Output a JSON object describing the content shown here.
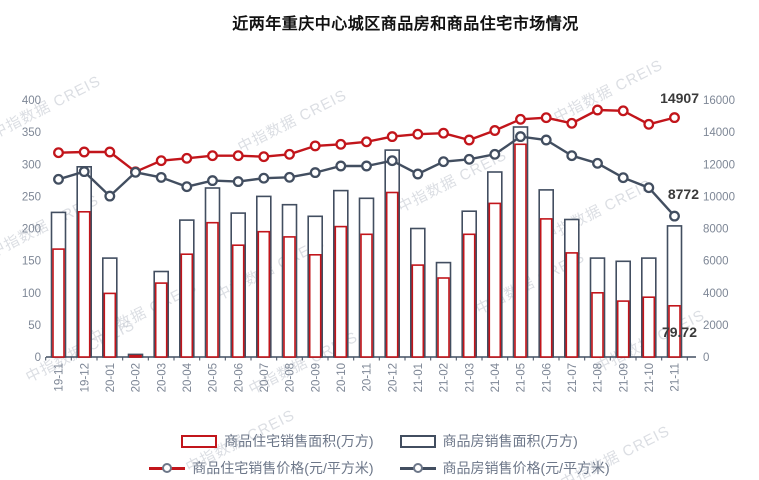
{
  "title": "近两年重庆中心城区商品房和商品住宅市场情况",
  "watermark_text": "中指数据 CREIS",
  "colors": {
    "red": "#c2151b",
    "dark": "#424e60",
    "ax": "#7e8796",
    "ann": "#3a3a3a",
    "wm": "#b9bec8",
    "title": "#111111",
    "legend": "#6d7789"
  },
  "chart_data": {
    "type": "combo-bar-line",
    "title": "近两年重庆中心城区商品房和商品住宅市场情况",
    "grid": false,
    "legend_position": "bottom",
    "categories": [
      "19-11",
      "19-12",
      "20-01",
      "20-02",
      "20-03",
      "20-04",
      "20-05",
      "20-06",
      "20-07",
      "20-08",
      "20-09",
      "20-10",
      "20-11",
      "20-12",
      "21-01",
      "21-02",
      "21-03",
      "21-04",
      "21-05",
      "21-06",
      "21-07",
      "21-08",
      "21-09",
      "21-10",
      "21-11"
    ],
    "left_axis": {
      "min": 0,
      "max": 400,
      "step": 50,
      "unit": "万方"
    },
    "right_axis": {
      "min": 0,
      "max": 16000,
      "step": 2000,
      "unit": "元/平方米"
    },
    "series": [
      {
        "name": "商品住宅销售面积(万方)",
        "type": "bar",
        "yaxis": "left",
        "color_key": "red",
        "values": [
          168,
          226,
          99,
          2,
          115,
          160,
          209,
          174,
          195,
          187,
          159,
          203,
          191,
          256,
          143,
          123,
          191,
          239,
          331,
          215,
          162,
          100,
          87,
          93,
          79.72
        ]
      },
      {
        "name": "商品房销售面积(万方)",
        "type": "bar",
        "yaxis": "left",
        "color_key": "dark",
        "values": [
          225,
          296,
          154,
          4,
          133,
          213,
          263,
          224,
          250,
          237,
          219,
          259,
          247,
          322,
          200,
          147,
          227,
          288,
          358,
          260,
          214,
          154,
          149,
          154,
          204
        ]
      },
      {
        "name": "商品住宅销售价格(元/平方米)",
        "type": "line",
        "yaxis": "right",
        "color_key": "red",
        "values": [
          12720,
          12760,
          12760,
          11530,
          12220,
          12370,
          12530,
          12530,
          12470,
          12620,
          13140,
          13240,
          13400,
          13720,
          13870,
          13930,
          13510,
          14100,
          14800,
          14900,
          14550,
          15380,
          15330,
          14490,
          14907
        ]
      },
      {
        "name": "商品房销售价格(元/平方米)",
        "type": "line",
        "yaxis": "right",
        "color_key": "dark",
        "values": [
          11060,
          11540,
          10020,
          11500,
          11180,
          10600,
          10980,
          10920,
          11130,
          11190,
          11480,
          11890,
          11890,
          12220,
          11390,
          12160,
          12310,
          12620,
          13720,
          13510,
          12530,
          12060,
          11160,
          10540,
          8772
        ]
      }
    ],
    "annotations": [
      {
        "text": "14907",
        "series": "商品住宅销售价格(元/平方米)",
        "category": "21-11"
      },
      {
        "text": "8772",
        "series": "商品房销售价格(元/平方米)",
        "category": "21-11"
      },
      {
        "text": "79.72",
        "series": "商品住宅销售面积(万方)",
        "category": "21-11"
      }
    ]
  }
}
